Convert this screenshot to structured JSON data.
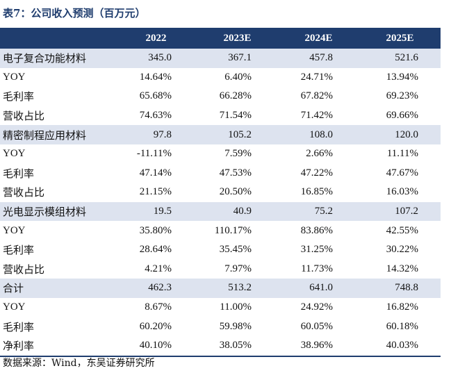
{
  "title": "表7：公司收入预测（百万元）",
  "headers": [
    "",
    "2022",
    "2023E",
    "2024E",
    "2025E"
  ],
  "rows": [
    {
      "label": "电子复合功能材料",
      "values": [
        "345.0",
        "367.1",
        "457.8",
        "521.6"
      ],
      "segment": true
    },
    {
      "label": "YOY",
      "values": [
        "14.64%",
        "6.40%",
        "24.71%",
        "13.94%"
      ],
      "segment": false
    },
    {
      "label": "毛利率",
      "values": [
        "65.68%",
        "66.28%",
        "67.82%",
        "69.23%"
      ],
      "segment": false
    },
    {
      "label": "营收占比",
      "values": [
        "74.63%",
        "71.54%",
        "71.42%",
        "69.66%"
      ],
      "segment": false
    },
    {
      "label": "精密制程应用材料",
      "values": [
        "97.8",
        "105.2",
        "108.0",
        "120.0"
      ],
      "segment": true
    },
    {
      "label": "YOY",
      "values": [
        "-11.11%",
        "7.59%",
        "2.66%",
        "11.11%"
      ],
      "segment": false
    },
    {
      "label": "毛利率",
      "values": [
        "47.14%",
        "47.53%",
        "47.22%",
        "47.67%"
      ],
      "segment": false
    },
    {
      "label": "营收占比",
      "values": [
        "21.15%",
        "20.50%",
        "16.85%",
        "16.03%"
      ],
      "segment": false
    },
    {
      "label": "光电显示模组材料",
      "values": [
        "19.5",
        "40.9",
        "75.2",
        "107.2"
      ],
      "segment": true
    },
    {
      "label": "YOY",
      "values": [
        "35.80%",
        "110.17%",
        "83.86%",
        "42.55%"
      ],
      "segment": false
    },
    {
      "label": "毛利率",
      "values": [
        "28.64%",
        "35.45%",
        "31.25%",
        "30.22%"
      ],
      "segment": false
    },
    {
      "label": "营收占比",
      "values": [
        "4.21%",
        "7.97%",
        "11.73%",
        "14.32%"
      ],
      "segment": false
    },
    {
      "label": "合计",
      "values": [
        "462.3",
        "513.2",
        "641.0",
        "748.8"
      ],
      "segment": true
    },
    {
      "label": "YOY",
      "values": [
        "8.67%",
        "11.00%",
        "24.92%",
        "16.82%"
      ],
      "segment": false
    },
    {
      "label": "毛利率",
      "values": [
        "60.20%",
        "59.98%",
        "60.05%",
        "60.18%"
      ],
      "segment": false
    },
    {
      "label": "净利率",
      "values": [
        "40.10%",
        "38.05%",
        "38.96%",
        "40.03%"
      ],
      "segment": false
    }
  ],
  "source": "数据来源：Wind，东吴证券研究所",
  "colors": {
    "header_bg": "#1f3d6e",
    "segment_bg": "#dde3ef"
  }
}
